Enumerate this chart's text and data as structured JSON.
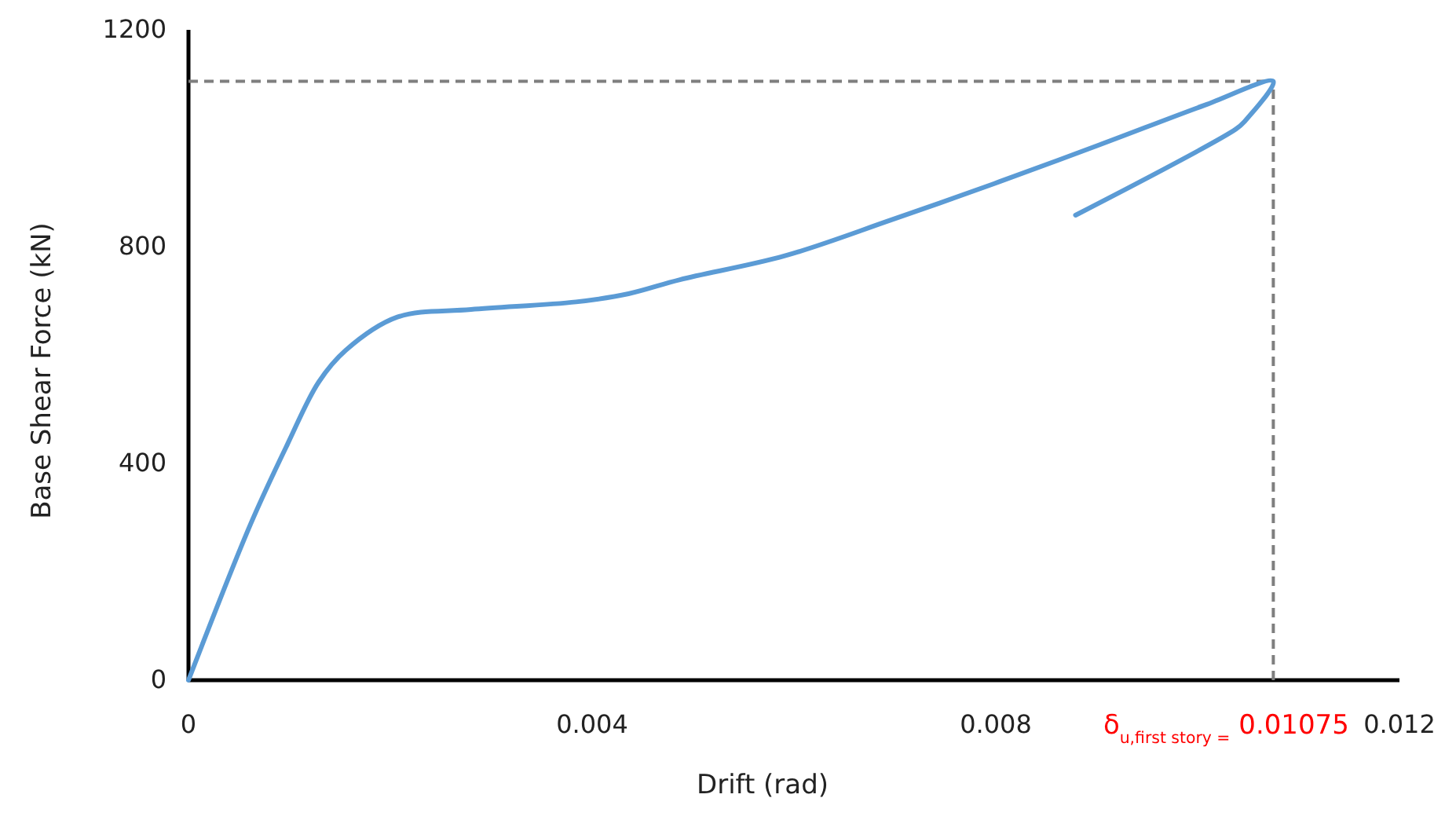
{
  "chart_data": {
    "type": "line",
    "xlabel": "Drift (rad)",
    "ylabel": "Base Shear Force (kN)",
    "series": [
      {
        "color": "#5b9bd5",
        "x": [
          0,
          0.00062,
          0.00098,
          0.00129,
          0.00156,
          0.00207,
          0.0028,
          0.00384,
          0.00436,
          0.00487,
          0.00591,
          0.00696,
          0.00798,
          0.00903,
          0.01007,
          0.01075,
          0.01047,
          0.01038,
          0.00879
        ],
        "values": [
          0,
          290,
          435,
          550,
          609,
          670,
          684,
          698,
          713,
          739,
          783,
          849,
          916,
          988,
          1061,
          1105,
          1032,
          1017,
          858
        ]
      }
    ],
    "xlim": [
      0,
      0.012
    ],
    "ylim": [
      0,
      1200
    ],
    "xticks": [
      0,
      0.004,
      0.008,
      0.012
    ],
    "yticks": [
      0,
      400,
      800,
      1200
    ],
    "grid": false,
    "marker": "none",
    "line_style": "solid",
    "ref_lines": [
      {
        "axis": "y",
        "value": 1105,
        "label": null,
        "color": "#7f7f7f",
        "line_style": "dashed"
      },
      {
        "axis": "x",
        "value": 0.01075,
        "label": "δ$_{u,first story =}$ 0.01075",
        "color": "#7f7f7f",
        "line_style": "dashed"
      }
    ]
  }
}
